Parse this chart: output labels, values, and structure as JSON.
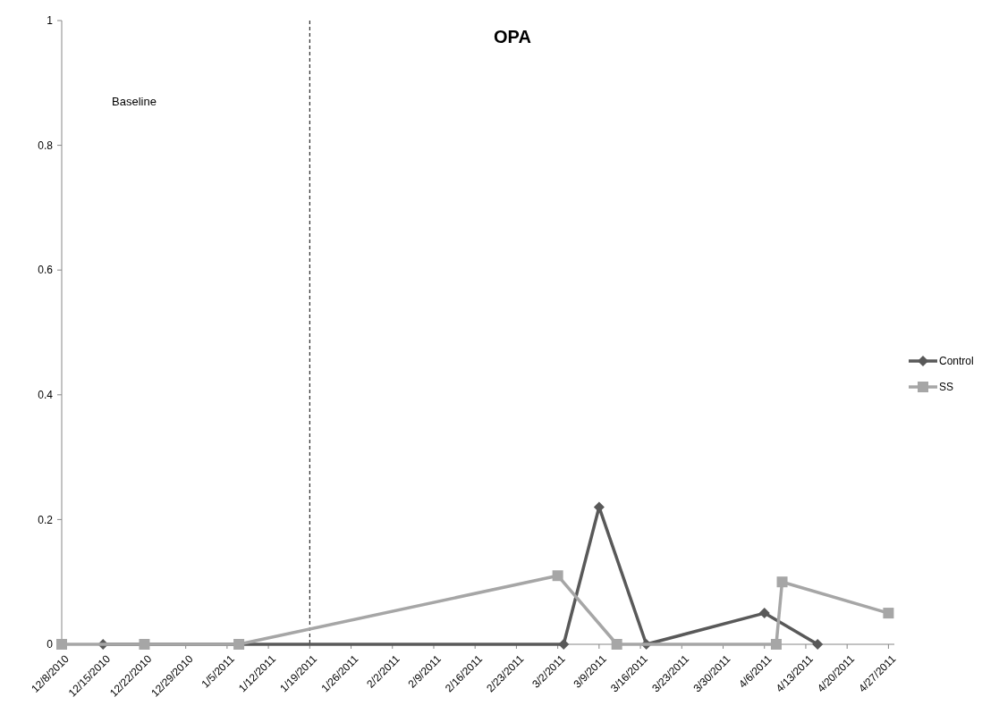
{
  "chart_data": {
    "type": "line",
    "title": "OPA",
    "annotations": [
      "Baseline"
    ],
    "xlim": [
      "2010-12-08",
      "2011-04-28"
    ],
    "xticks": [
      {
        "value": "2010-12-08",
        "label": "12/8/2010"
      },
      {
        "value": "2010-12-15",
        "label": "12/15/2010"
      },
      {
        "value": "2010-12-22",
        "label": "12/22/2010"
      },
      {
        "value": "2010-12-29",
        "label": "12/29/2010"
      },
      {
        "value": "2011-01-05",
        "label": "1/5/2011"
      },
      {
        "value": "2011-01-12",
        "label": "1/12/2011"
      },
      {
        "value": "2011-01-19",
        "label": "1/19/2011"
      },
      {
        "value": "2011-01-26",
        "label": "1/26/2011"
      },
      {
        "value": "2011-02-02",
        "label": "2/2/2011"
      },
      {
        "value": "2011-02-09",
        "label": "2/9/2011"
      },
      {
        "value": "2011-02-16",
        "label": "2/16/2011"
      },
      {
        "value": "2011-02-23",
        "label": "2/23/2011"
      },
      {
        "value": "2011-03-02",
        "label": "3/2/2011"
      },
      {
        "value": "2011-03-09",
        "label": "3/9/2011"
      },
      {
        "value": "2011-03-16",
        "label": "3/16/2011"
      },
      {
        "value": "2011-03-23",
        "label": "3/23/2011"
      },
      {
        "value": "2011-03-30",
        "label": "3/30/2011"
      },
      {
        "value": "2011-04-06",
        "label": "4/6/2011"
      },
      {
        "value": "2011-04-13",
        "label": "4/13/2011"
      },
      {
        "value": "2011-04-20",
        "label": "4/20/2011"
      },
      {
        "value": "2011-04-27",
        "label": "4/27/2011"
      }
    ],
    "ylim": [
      0,
      1
    ],
    "yticks": [
      0,
      0.2,
      0.4,
      0.6,
      0.8,
      1
    ],
    "grid": false,
    "legend": "right",
    "line_style": "solid",
    "ref_lines": [
      {
        "axis": "x",
        "value": "2011-01-19",
        "line_style": "dashed",
        "color": "#000000"
      }
    ],
    "series": [
      {
        "name": "Control",
        "color": "#595959",
        "marker": "diamond",
        "x": [
          "2010-12-15",
          "2011-01-07",
          "2011-03-03",
          "2011-03-09",
          "2011-03-17",
          "2011-04-06",
          "2011-04-15"
        ],
        "values": [
          0,
          0,
          0,
          0.22,
          0,
          0.05,
          0
        ]
      },
      {
        "name": "SS",
        "color": "#a6a6a6",
        "marker": "square",
        "x": [
          "2010-12-08",
          "2010-12-22",
          "2011-01-07",
          "2011-03-02",
          "2011-03-12",
          "2011-04-08",
          "2011-04-09",
          "2011-04-27"
        ],
        "values": [
          0,
          0,
          0,
          0.11,
          0,
          0,
          0.1,
          0.05
        ]
      }
    ]
  }
}
